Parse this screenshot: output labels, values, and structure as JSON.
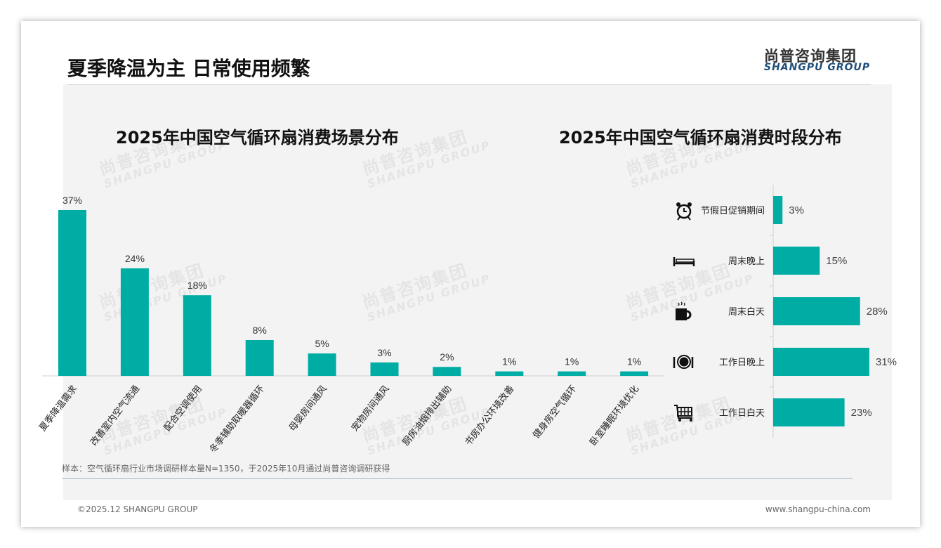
{
  "header": {
    "title": "夏季降温为主 日常使用频繁",
    "logo_cn": "尚普咨询集团",
    "logo_en": "SHANGPU GROUP"
  },
  "watermark": {
    "cn": "尚普咨询集团",
    "en": "SHANGPU GROUP"
  },
  "colors": {
    "bar": "#00ada5",
    "text": "#333333"
  },
  "chart_data": [
    {
      "type": "bar",
      "title": "2025年中国空气循环扇消费场景分布",
      "categories": [
        "夏季降温需求",
        "改善室内空气流通",
        "配合空调使用",
        "冬季辅助取暖器循环",
        "母婴房间通风",
        "宠物房间通风",
        "厨房油烟排出辅助",
        "书房办公环境改善",
        "健身房空气循环",
        "卧室睡眠环境优化"
      ],
      "values": [
        37,
        24,
        18,
        8,
        5,
        3,
        2,
        1,
        1,
        1
      ],
      "labels": [
        "37%",
        "24%",
        "18%",
        "8%",
        "5%",
        "3%",
        "2%",
        "1%",
        "1%",
        "1%"
      ],
      "ylim": [
        0,
        37
      ],
      "xlabel": "",
      "ylabel": "",
      "grid": false
    },
    {
      "type": "bar",
      "orientation": "horizontal",
      "title": "2025年中国空气循环扇消费时段分布",
      "categories": [
        "节假日促销期间",
        "周末晚上",
        "周末白天",
        "工作日晚上",
        "工作日白天"
      ],
      "icons": [
        "alarm-clock-icon",
        "bed-icon",
        "coffee-mug-icon",
        "plate-cutlery-icon",
        "shopping-cart-icon"
      ],
      "values": [
        3,
        15,
        28,
        31,
        23
      ],
      "labels": [
        "3%",
        "15%",
        "28%",
        "31%",
        "23%"
      ],
      "xlim": [
        0,
        31
      ],
      "grid": false
    }
  ],
  "footer": {
    "note": "样本：空气循环扇行业市场调研样本量N=1350，于2025年10月通过尚普咨询调研获得",
    "copyright": "©2025.12 SHANGPU GROUP",
    "url": "www.shangpu-china.com"
  }
}
